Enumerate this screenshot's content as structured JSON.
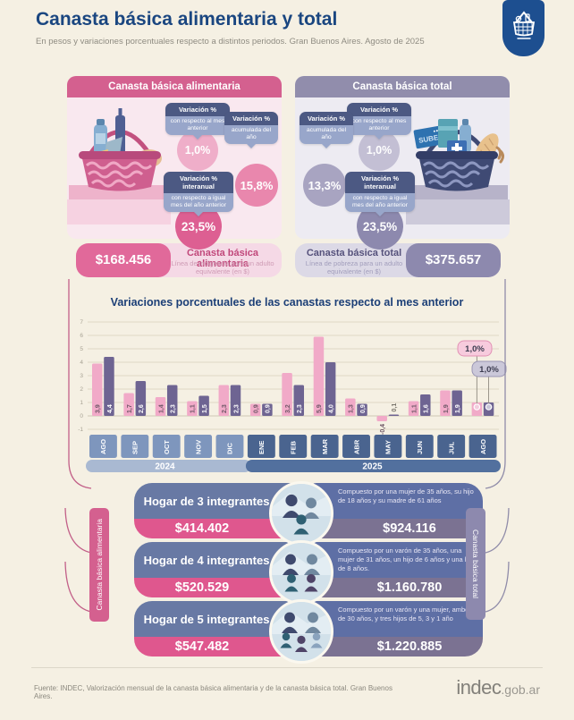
{
  "header": {
    "title": "Canasta básica alimentaria y total",
    "subtitle": "En pesos y variaciones porcentuales respecto a distintos periodos. Gran Buenos Aires. Agosto de 2025"
  },
  "badge": {
    "icon": "basket-icon"
  },
  "panels": {
    "alimentaria": {
      "title": "Canasta básica alimentaria",
      "chips": [
        {
          "title": "Variación %",
          "subtitle": "con respecto al mes anterior",
          "value": "1,0%"
        },
        {
          "title": "Variación %",
          "subtitle": "acumulada del año",
          "value": "15,8%"
        },
        {
          "title": "Variación % interanual",
          "subtitle": "con respecto a igual mes del año anterior",
          "value": "23,5%"
        }
      ],
      "amount": "$168.456",
      "amount_title": "Canasta básica alimentaria",
      "amount_subtitle": "Línea de indigencia para un adulto equivalente (en $)"
    },
    "total": {
      "title": "Canasta básica total",
      "basket_label": "SUBE",
      "chips": [
        {
          "title": "Variación %",
          "subtitle": "con respecto al mes anterior",
          "value": "1,0%"
        },
        {
          "title": "Variación %",
          "subtitle": "acumulada del año",
          "value": "13,3%"
        },
        {
          "title": "Variación % interanual",
          "subtitle": "con respecto a igual mes del año anterior",
          "value": "23,5%"
        }
      ],
      "amount": "$375.657",
      "amount_title": "Canasta básica total",
      "amount_subtitle": "Línea de pobreza para un adulto equivalente (en $)"
    }
  },
  "chart_data": {
    "type": "bar",
    "title": "Variaciones porcentuales de las canastas respecto al mes anterior",
    "categories": [
      "AGO",
      "SEP",
      "OCT",
      "NOV",
      "DIC",
      "ENE",
      "FEB",
      "MAR",
      "ABR",
      "MAY",
      "JUN",
      "JUL",
      "AGO"
    ],
    "year_groups": [
      {
        "label": "2024",
        "span": 5
      },
      {
        "label": "2025",
        "span": 8
      }
    ],
    "series": [
      {
        "name": "Canasta básica alimentaria",
        "color": "#f1aac8",
        "values": [
          3.9,
          1.7,
          1.4,
          1.1,
          2.3,
          0.9,
          3.2,
          5.9,
          1.3,
          -0.4,
          1.1,
          1.9,
          1.0
        ]
      },
      {
        "name": "Canasta básica total",
        "color": "#6e6492",
        "values": [
          4.4,
          2.6,
          2.3,
          1.5,
          2.3,
          0.9,
          2.3,
          4.0,
          0.9,
          0.1,
          1.6,
          1.9,
          1.0
        ]
      }
    ],
    "callouts": [
      {
        "label": "1,0%"
      },
      {
        "label": "1,0%"
      }
    ],
    "ylim": [
      -1,
      7
    ],
    "yticks": [
      7,
      6,
      5,
      4,
      3,
      2,
      1,
      0,
      -1
    ],
    "grid": true,
    "legend": "none"
  },
  "households": {
    "left_tab": "Canasta básica alimentaria",
    "right_tab": "Canasta básica total",
    "rows": [
      {
        "title": "Hogar de 3 integrantes",
        "cba": "$414.402",
        "desc": "Compuesto por una mujer de 35 años, su hijo de 18 años y su madre de 61 años",
        "cbt": "$924.116"
      },
      {
        "title": "Hogar de 4 integrantes",
        "cba": "$520.529",
        "desc": "Compuesto por un varón de 35 años, una mujer de 31 años, un hijo de 6 años y una hija de 8 años.",
        "cbt": "$1.160.780"
      },
      {
        "title": "Hogar de 5 integrantes",
        "cba": "$547.482",
        "desc": "Compuesto por un varón y una mujer, ambos de 30 años, y tres hijos de 5, 3 y 1 año",
        "cbt": "$1.220.885"
      }
    ]
  },
  "footer": {
    "source": "Fuente: INDEC, Valorización mensual de la canasta básica alimentaria y de la canasta básica total. Gran Buenos Aires.",
    "logo_main": "indec",
    "logo_suffix": ".gob.ar"
  }
}
